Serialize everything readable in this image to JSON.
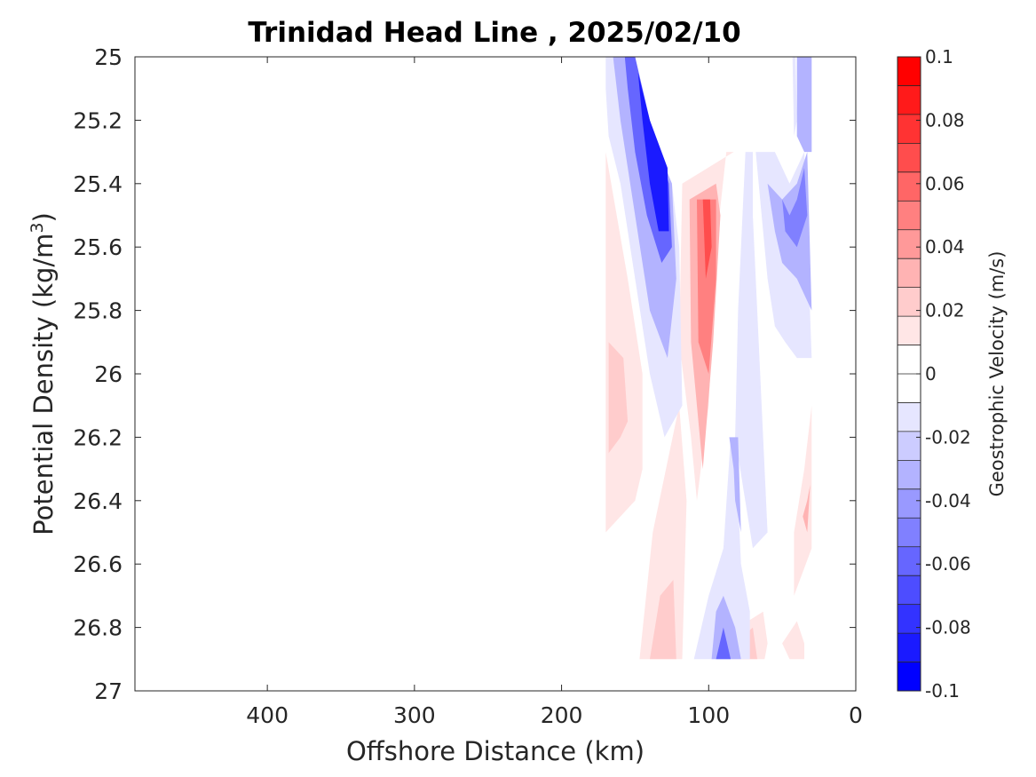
{
  "chart_data": {
    "type": "heatmap",
    "title": "Trinidad Head Line , 2025/02/10",
    "xlabel": "Offshore Distance (km)",
    "ylabel_main": "Potential Density (kg/m",
    "ylabel_sup": "3",
    "ylabel_close": ")",
    "colorbar_label": "Geostrophic Velocity (m/s)",
    "xlim": [
      490,
      0
    ],
    "x_reversed": true,
    "ylim": [
      25,
      27
    ],
    "y_reversed": true,
    "x_ticks": [
      400,
      300,
      200,
      100,
      0
    ],
    "x_tick_labels": [
      "400",
      "300",
      "200",
      "100",
      "0"
    ],
    "y_ticks": [
      25,
      25.2,
      25.4,
      25.6,
      25.8,
      26,
      26.2,
      26.4,
      26.6,
      26.8,
      27
    ],
    "y_tick_labels": [
      "25",
      "25.2",
      "25.4",
      "25.6",
      "25.8",
      "26",
      "26.2",
      "26.4",
      "26.6",
      "26.8",
      "27"
    ],
    "colorbar_range": [
      -0.1,
      0.1
    ],
    "colorbar_step": 0.01,
    "colorbar_ticks": [
      0.1,
      0.08,
      0.06,
      0.04,
      0.02,
      0,
      -0.02,
      -0.04,
      -0.06,
      -0.08,
      -0.1
    ],
    "colorbar_tick_labels": [
      "0.1",
      "0.08",
      "0.06",
      "0.04",
      "0.02",
      "0",
      "-0.02",
      "-0.04",
      "-0.06",
      "-0.08",
      "-0.1"
    ],
    "colorbar_colors": [
      "#0000ff",
      "#1a1aff",
      "#3333ff",
      "#4d4dff",
      "#6666ff",
      "#8080ff",
      "#9999ff",
      "#b3b3ff",
      "#ccccff",
      "#e6e6ff",
      "#ffffff",
      "#ffffff",
      "#ffe6e6",
      "#ffcccc",
      "#ffb3b3",
      "#ff9999",
      "#ff8080",
      "#ff6666",
      "#ff4d4d",
      "#ff3333",
      "#ff1a1a",
      "#ff0000"
    ],
    "contour_regions": [
      {
        "v": 0.01,
        "pts": [
          [
            170,
            25.3
          ],
          [
            155,
            25.7
          ],
          [
            145,
            26.0
          ],
          [
            145,
            26.3
          ],
          [
            150,
            26.4
          ],
          [
            170,
            26.5
          ]
        ]
      },
      {
        "v": 0.02,
        "pts": [
          [
            168,
            25.9
          ],
          [
            158,
            25.95
          ],
          [
            155,
            26.15
          ],
          [
            160,
            26.2
          ],
          [
            168,
            26.25
          ]
        ]
      },
      {
        "v": 0.01,
        "pts": [
          [
            147,
            26.9
          ],
          [
            138,
            26.5
          ],
          [
            120,
            26.1
          ],
          [
            115,
            26.4
          ],
          [
            118,
            26.9
          ]
        ]
      },
      {
        "v": 0.02,
        "pts": [
          [
            140,
            26.9
          ],
          [
            133,
            26.7
          ],
          [
            124,
            26.65
          ],
          [
            122,
            26.9
          ]
        ]
      },
      {
        "v": 0.01,
        "pts": [
          [
            118,
            25.4
          ],
          [
            120,
            25.9
          ],
          [
            112,
            26.2
          ],
          [
            108,
            26.4
          ],
          [
            100,
            26.1
          ],
          [
            95,
            25.6
          ],
          [
            88,
            25.3
          ],
          [
            83,
            25.3
          ]
        ]
      },
      {
        "v": 0.03,
        "pts": [
          [
            113,
            25.45
          ],
          [
            112,
            25.9
          ],
          [
            104,
            26.3
          ],
          [
            97,
            25.9
          ],
          [
            92,
            25.5
          ],
          [
            95,
            25.4
          ]
        ]
      },
      {
        "v": 0.05,
        "pts": [
          [
            108,
            25.45
          ],
          [
            107,
            25.9
          ],
          [
            100,
            26.0
          ],
          [
            95,
            25.7
          ],
          [
            95,
            25.45
          ]
        ]
      },
      {
        "v": 0.07,
        "pts": [
          [
            104,
            25.45
          ],
          [
            102,
            25.7
          ],
          [
            98,
            25.6
          ],
          [
            99,
            25.45
          ]
        ]
      },
      {
        "v": 0.01,
        "pts": [
          [
            90,
            26.9
          ],
          [
            80,
            26.8
          ],
          [
            63,
            26.75
          ],
          [
            60,
            26.85
          ],
          [
            62,
            26.9
          ]
        ]
      },
      {
        "v": 0.02,
        "pts": [
          [
            84,
            26.9
          ],
          [
            82,
            26.85
          ],
          [
            70,
            26.8
          ],
          [
            67,
            26.9
          ]
        ]
      },
      {
        "v": 0.01,
        "pts": [
          [
            45,
            26.9
          ],
          [
            50,
            26.85
          ],
          [
            40,
            26.78
          ],
          [
            35,
            26.85
          ],
          [
            35,
            26.9
          ]
        ]
      },
      {
        "v": 0.01,
        "pts": [
          [
            42,
            26.7
          ],
          [
            42,
            26.5
          ],
          [
            35,
            26.3
          ],
          [
            30,
            26.1
          ],
          [
            30,
            26.55
          ]
        ]
      },
      {
        "v": 0.03,
        "pts": [
          [
            36,
            26.45
          ],
          [
            33,
            26.4
          ],
          [
            31,
            26.35
          ],
          [
            33,
            26.5
          ]
        ]
      },
      {
        "v": -0.01,
        "pts": [
          [
            170,
            25.1
          ],
          [
            170,
            25.0
          ],
          [
            150,
            25.0
          ],
          [
            140,
            25.25
          ],
          [
            125,
            25.4
          ],
          [
            120,
            25.6
          ],
          [
            118,
            26.1
          ],
          [
            130,
            26.2
          ],
          [
            140,
            26.0
          ],
          [
            150,
            25.7
          ],
          [
            160,
            25.4
          ],
          [
            168,
            25.25
          ]
        ]
      },
      {
        "v": -0.03,
        "pts": [
          [
            165,
            25.0
          ],
          [
            150,
            25.0
          ],
          [
            138,
            25.25
          ],
          [
            125,
            25.4
          ],
          [
            122,
            25.7
          ],
          [
            128,
            25.95
          ],
          [
            140,
            25.8
          ],
          [
            150,
            25.5
          ],
          [
            160,
            25.2
          ]
        ]
      },
      {
        "v": -0.06,
        "pts": [
          [
            157,
            25.0
          ],
          [
            150,
            25.0
          ],
          [
            140,
            25.2
          ],
          [
            127,
            25.4
          ],
          [
            125,
            25.6
          ],
          [
            132,
            25.65
          ],
          [
            142,
            25.5
          ],
          [
            150,
            25.3
          ],
          [
            155,
            25.1
          ]
        ]
      },
      {
        "v": -0.09,
        "pts": [
          [
            148,
            25.05
          ],
          [
            140,
            25.2
          ],
          [
            128,
            25.35
          ],
          [
            127,
            25.55
          ],
          [
            134,
            25.55
          ],
          [
            140,
            25.4
          ],
          [
            145,
            25.2
          ]
        ]
      },
      {
        "v": -0.01,
        "pts": [
          [
            85,
            26.2
          ],
          [
            90,
            26.55
          ],
          [
            100,
            26.7
          ],
          [
            110,
            26.9
          ],
          [
            72,
            26.9
          ],
          [
            72,
            26.75
          ],
          [
            78,
            26.6
          ],
          [
            80,
            26.4
          ]
        ]
      },
      {
        "v": -0.03,
        "pts": [
          [
            98,
            26.9
          ],
          [
            95,
            26.75
          ],
          [
            90,
            26.7
          ],
          [
            82,
            26.8
          ],
          [
            78,
            26.9
          ]
        ]
      },
      {
        "v": -0.06,
        "pts": [
          [
            95,
            26.9
          ],
          [
            90,
            26.8
          ],
          [
            85,
            26.9
          ]
        ]
      },
      {
        "v": -0.01,
        "pts": [
          [
            75,
            25.3
          ],
          [
            80,
            25.8
          ],
          [
            82,
            26.2
          ],
          [
            70,
            26.55
          ],
          [
            60,
            26.5
          ],
          [
            65,
            26.0
          ],
          [
            70,
            25.5
          ],
          [
            70,
            25.3
          ]
        ]
      },
      {
        "v": -0.03,
        "pts": [
          [
            86,
            26.2
          ],
          [
            83,
            26.3
          ],
          [
            82,
            26.4
          ],
          [
            78,
            26.5
          ],
          [
            80,
            26.2
          ]
        ]
      },
      {
        "v": -0.01,
        "pts": [
          [
            68,
            25.3
          ],
          [
            55,
            25.3
          ],
          [
            45,
            25.4
          ],
          [
            35,
            25.3
          ],
          [
            30,
            25.95
          ],
          [
            40,
            25.95
          ],
          [
            48,
            25.9
          ],
          [
            55,
            25.85
          ],
          [
            60,
            25.7
          ]
        ]
      },
      {
        "v": -0.03,
        "pts": [
          [
            60,
            25.4
          ],
          [
            50,
            25.45
          ],
          [
            40,
            25.4
          ],
          [
            33,
            25.3
          ],
          [
            30,
            25.8
          ],
          [
            40,
            25.7
          ],
          [
            50,
            25.65
          ],
          [
            55,
            25.55
          ]
        ]
      },
      {
        "v": -0.05,
        "pts": [
          [
            50,
            25.45
          ],
          [
            45,
            25.5
          ],
          [
            40,
            25.45
          ],
          [
            35,
            25.35
          ],
          [
            33,
            25.5
          ],
          [
            40,
            25.6
          ],
          [
            48,
            25.55
          ]
        ]
      },
      {
        "v": -0.03,
        "pts": [
          [
            40,
            25.0
          ],
          [
            35,
            25.0
          ],
          [
            30,
            25.0
          ],
          [
            30,
            25.3
          ],
          [
            35,
            25.3
          ],
          [
            40,
            25.25
          ]
        ]
      },
      {
        "v": -0.01,
        "pts": [
          [
            43,
            25.0
          ],
          [
            41,
            25.0
          ],
          [
            40,
            25.2
          ],
          [
            42,
            25.25
          ]
        ]
      }
    ]
  }
}
